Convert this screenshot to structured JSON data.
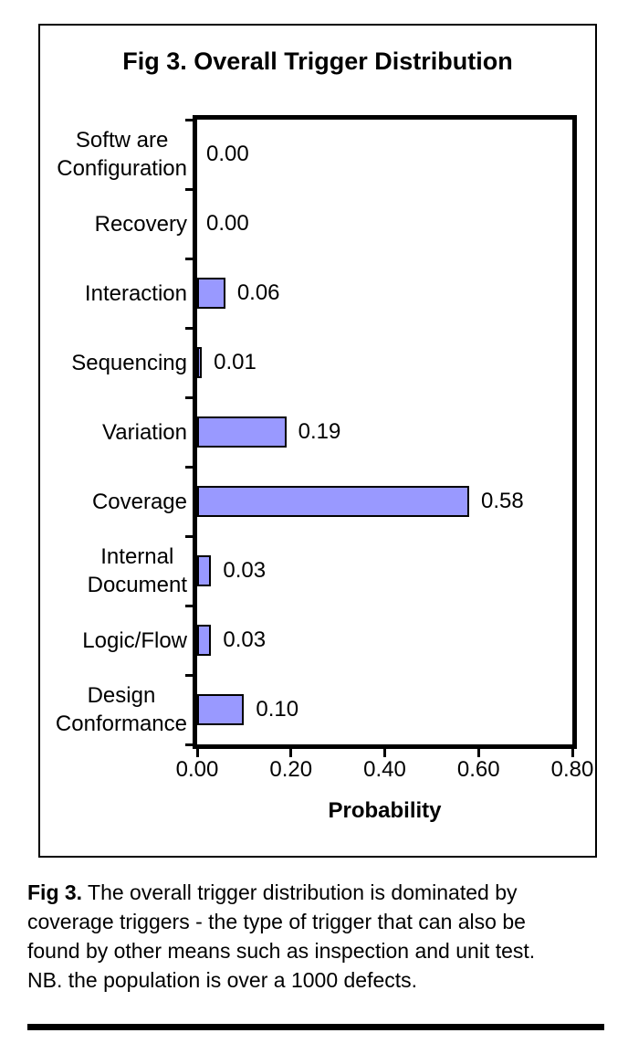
{
  "chart_data": {
    "type": "bar",
    "orientation": "horizontal",
    "title": "Fig 3. Overall Trigger Distribution",
    "xlabel": "Probability",
    "xlim": [
      0,
      0.8
    ],
    "x_ticks": [
      "0.00",
      "0.20",
      "0.40",
      "0.60",
      "0.80"
    ],
    "categories": [
      "Softw are Configuration",
      "Recovery",
      "Interaction",
      "Sequencing",
      "Variation",
      "Coverage",
      "Internal Document",
      "Logic/Flow",
      "Design Conformance"
    ],
    "category_label_lines": [
      [
        "Softw are",
        "Configuration"
      ],
      [
        "Recovery"
      ],
      [
        "Interaction"
      ],
      [
        "Sequencing"
      ],
      [
        "Variation"
      ],
      [
        "Coverage"
      ],
      [
        "Internal",
        "Document"
      ],
      [
        "Logic/Flow"
      ],
      [
        "Design",
        "Conformance"
      ]
    ],
    "values": [
      0.0,
      0.0,
      0.06,
      0.01,
      0.19,
      0.58,
      0.03,
      0.03,
      0.1
    ],
    "value_labels": [
      "0.00",
      "0.00",
      "0.06",
      "0.01",
      "0.19",
      "0.58",
      "0.03",
      "0.03",
      "0.10"
    ],
    "grid": false,
    "legend": false,
    "colors": {
      "bar_fill": "#9999FF",
      "bar_border": "#000000",
      "axis": "#000000",
      "background": "#FFFFFF"
    }
  },
  "caption": {
    "bold_prefix": "Fig 3.",
    "line1_rest": " The overall trigger distribution is dominated by",
    "line2": "coverage triggers - the type of trigger that can also be",
    "line3": "found by other means such as inspection and unit test.",
    "line4": "NB. the population is over a 1000 defects."
  }
}
